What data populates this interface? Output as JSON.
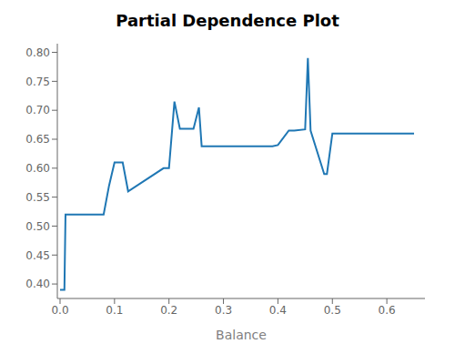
{
  "chart_data": {
    "type": "line",
    "title": "Partial Dependence Plot",
    "xlabel": "Balance",
    "xlim": [
      -0.005,
      0.67
    ],
    "ylim": [
      0.375,
      0.815
    ],
    "xticks": [
      {
        "value": 0,
        "label": "0.0"
      },
      0.1,
      0.2,
      0.3,
      0.4,
      0.5,
      0.6
    ],
    "yticks": [
      {
        "value": 0.4,
        "label": "0.40"
      },
      0.45,
      {
        "value": 0.5,
        "label": "0.50"
      },
      0.55,
      {
        "value": 0.6,
        "label": "0.60"
      },
      0.65,
      {
        "value": 0.7,
        "label": "0.70"
      },
      0.75,
      {
        "value": 0.8,
        "label": "0.80"
      }
    ],
    "grid": false,
    "color": "#1f77b4",
    "x": [
      0.0,
      0.008,
      0.008,
      0.01,
      0.01,
      0.08,
      0.08,
      0.09,
      0.09,
      0.1,
      0.1,
      0.115,
      0.115,
      0.125,
      0.125,
      0.19,
      0.19,
      0.2,
      0.2,
      0.21,
      0.21,
      0.22,
      0.22,
      0.245,
      0.245,
      0.255,
      0.255,
      0.26,
      0.26,
      0.39,
      0.39,
      0.4,
      0.4,
      0.42,
      0.42,
      0.43,
      0.43,
      0.45,
      0.45,
      0.455,
      0.455,
      0.46,
      0.46,
      0.485,
      0.485,
      0.49,
      0.49,
      0.5,
      0.5,
      0.65
    ],
    "values": [
      0.39,
      0.39,
      0.39,
      0.52,
      0.52,
      0.52,
      0.52,
      0.57,
      0.57,
      0.61,
      0.61,
      0.61,
      0.61,
      0.56,
      0.56,
      0.6,
      0.6,
      0.6,
      0.6,
      0.715,
      0.715,
      0.668,
      0.668,
      0.668,
      0.668,
      0.705,
      0.705,
      0.638,
      0.638,
      0.638,
      0.638,
      0.64,
      0.64,
      0.665,
      0.665,
      0.665,
      0.665,
      0.667,
      0.667,
      0.79,
      0.79,
      0.665,
      0.665,
      0.59,
      0.59,
      0.59,
      0.59,
      0.66,
      0.66,
      0.66
    ]
  }
}
